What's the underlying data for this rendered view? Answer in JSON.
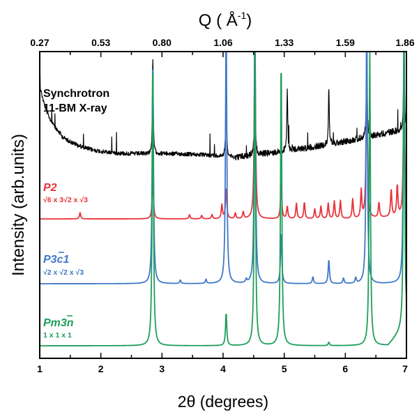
{
  "chart_data": {
    "type": "line",
    "xlabel": "2θ (degrees)",
    "ylabel": "Intensity (arb.units)",
    "x2label": "Q ( Å⁻¹)",
    "x2label_main": "Q ( Å",
    "x2label_exp": "-1",
    "x2label_close": ")",
    "xlim": [
      1,
      7
    ],
    "x_ticks": [
      "1",
      "2",
      "3",
      "4",
      "5",
      "6",
      "7"
    ],
    "q_ticks": [
      "0.27",
      "0.53",
      "0.80",
      "1.06",
      "1.33",
      "1.59",
      "1.86"
    ],
    "y_ticks_shown": false,
    "series": [
      {
        "key": "sync",
        "label_line1": "Synchrotron",
        "label_line2": "11-BM X-ray",
        "color": "#000000",
        "peaks": [
          {
            "x": 2.85,
            "h": 140
          },
          {
            "x": 4.05,
            "h": 120
          },
          {
            "x": 4.52,
            "h": 140
          },
          {
            "x": 5.05,
            "h": 90
          },
          {
            "x": 5.73,
            "h": 85
          },
          {
            "x": 6.35,
            "h": 140
          },
          {
            "x": 6.96,
            "h": 140
          }
        ]
      },
      {
        "key": "p2",
        "label_main": "P2",
        "label_sub": "√6 x 3√2 x √3",
        "color": "#e8333b",
        "peaks": [
          {
            "x": 1.66,
            "h": 9
          },
          {
            "x": 2.85,
            "h": 60
          },
          {
            "x": 3.45,
            "h": 6
          },
          {
            "x": 3.65,
            "h": 5
          },
          {
            "x": 3.82,
            "h": 6
          },
          {
            "x": 3.98,
            "h": 20
          },
          {
            "x": 4.05,
            "h": 45
          },
          {
            "x": 4.2,
            "h": 8
          },
          {
            "x": 4.33,
            "h": 10
          },
          {
            "x": 4.52,
            "h": 280
          },
          {
            "x": 4.95,
            "h": 52
          },
          {
            "x": 5.05,
            "h": 18
          },
          {
            "x": 5.2,
            "h": 22
          },
          {
            "x": 5.33,
            "h": 24
          },
          {
            "x": 5.5,
            "h": 14
          },
          {
            "x": 5.6,
            "h": 18
          },
          {
            "x": 5.72,
            "h": 22
          },
          {
            "x": 5.82,
            "h": 25
          },
          {
            "x": 5.92,
            "h": 26
          },
          {
            "x": 6.12,
            "h": 28
          },
          {
            "x": 6.26,
            "h": 40
          },
          {
            "x": 6.35,
            "h": 230
          },
          {
            "x": 6.55,
            "h": 22
          },
          {
            "x": 6.75,
            "h": 40
          },
          {
            "x": 6.85,
            "h": 45
          },
          {
            "x": 6.96,
            "h": 220
          }
        ]
      },
      {
        "key": "p3c1",
        "label_main": "P3c1",
        "label_sub": "√2 x √2 x √3",
        "color": "#3f78c8",
        "peaks": [
          {
            "x": 2.85,
            "h": 330
          },
          {
            "x": 3.3,
            "h": 5
          },
          {
            "x": 3.72,
            "h": 6
          },
          {
            "x": 4.05,
            "h": 390
          },
          {
            "x": 4.38,
            "h": 5
          },
          {
            "x": 4.52,
            "h": 400
          },
          {
            "x": 4.95,
            "h": 75
          },
          {
            "x": 5.47,
            "h": 10
          },
          {
            "x": 5.73,
            "h": 35
          },
          {
            "x": 5.97,
            "h": 8
          },
          {
            "x": 6.17,
            "h": 8
          },
          {
            "x": 6.35,
            "h": 400
          },
          {
            "x": 6.96,
            "h": 400
          }
        ]
      },
      {
        "key": "pm3n",
        "label_main": "Pm3n",
        "label_sub": "1 x 1 x 1",
        "color": "#1e9e5a",
        "peaks": [
          {
            "x": 2.85,
            "h": 420
          },
          {
            "x": 4.05,
            "h": 48
          },
          {
            "x": 4.52,
            "h": 430
          },
          {
            "x": 4.95,
            "h": 420
          },
          {
            "x": 5.73,
            "h": 5
          },
          {
            "x": 6.4,
            "h": 430
          },
          {
            "x": 6.96,
            "h": 430
          }
        ]
      }
    ]
  }
}
